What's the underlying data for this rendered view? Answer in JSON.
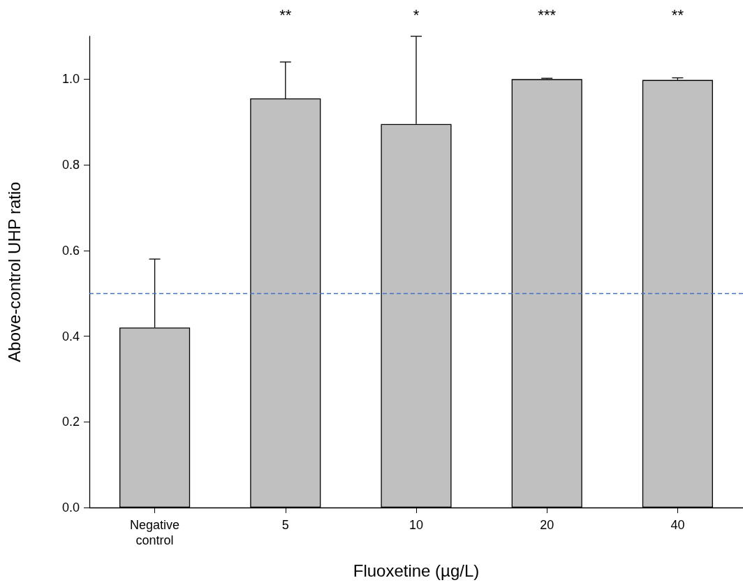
{
  "chart_data": {
    "type": "bar",
    "xlabel": "Fluoxetine (µg/L)",
    "ylabel": "Above-control UHP ratio",
    "categories": [
      "Negative\ncontrol",
      "5",
      "10",
      "20",
      "40"
    ],
    "values": [
      0.42,
      0.955,
      0.895,
      1.0,
      0.998
    ],
    "errors": [
      [
        0.42,
        0.58
      ],
      [
        0.955,
        1.04
      ],
      [
        0.895,
        1.1
      ],
      [
        1.0,
        1.002
      ],
      [
        0.998,
        1.003
      ]
    ],
    "color": "#c0c0c0",
    "ylim": [
      0,
      1.1
    ],
    "yticks": [
      {
        "value": 0,
        "label": "0.0"
      },
      {
        "value": 0.2,
        "label": "0.2"
      },
      {
        "value": 0.4,
        "label": "0.4"
      },
      {
        "value": 0.6,
        "label": "0.6"
      },
      {
        "value": 0.8,
        "label": "0.8"
      },
      {
        "value": 1,
        "label": "1.0"
      }
    ],
    "ref_lines": [
      {
        "axis": "y",
        "value": 0.5,
        "label": null,
        "color": "#4472c4",
        "line_style": "dashed"
      }
    ],
    "annotations": [
      "**",
      "*",
      "***",
      "**"
    ],
    "grid": false
  }
}
